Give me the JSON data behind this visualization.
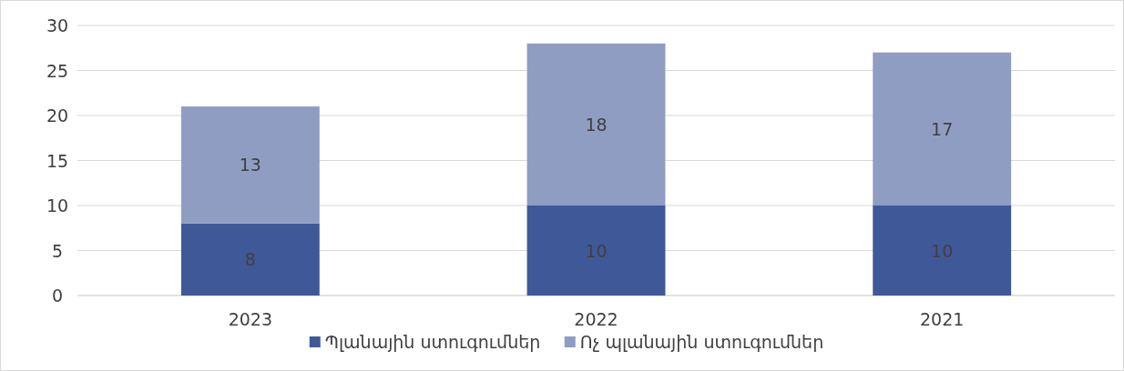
{
  "chart_data": {
    "type": "bar",
    "stacked": true,
    "categories": [
      "2023",
      "2022",
      "2021"
    ],
    "series": [
      {
        "name": "Պլանային ստուգումներ",
        "color": "#3f5898",
        "values": [
          8,
          10,
          10
        ]
      },
      {
        "name": "Ոչ պլանային ստուգումներ",
        "color": "#8f9dc3",
        "values": [
          13,
          18,
          17
        ]
      }
    ],
    "ylim": [
      0,
      30
    ],
    "yticks": [
      0,
      5,
      10,
      15,
      20,
      25,
      30
    ],
    "grid": "y",
    "legend": "bottom",
    "data_labels": true
  }
}
